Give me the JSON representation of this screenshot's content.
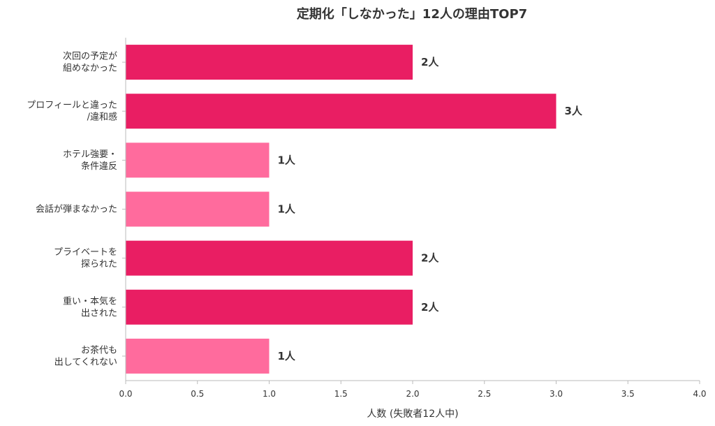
{
  "chart_data": {
    "type": "bar",
    "orientation": "horizontal",
    "title": "定期化「しなかった」12人の理由TOP7",
    "xlabel": "人数 (失敗者12人中)",
    "ylabel": "",
    "xlim": [
      0,
      4
    ],
    "xticks": [
      "0.0",
      "0.5",
      "1.0",
      "1.5",
      "2.0",
      "2.5",
      "3.0",
      "3.5",
      "4.0"
    ],
    "grid": false,
    "categories": [
      [
        "次回の予定が",
        "組めなかった"
      ],
      [
        "プロフィールと違った",
        "/違和感"
      ],
      [
        "ホテル強要・",
        "条件違反"
      ],
      [
        "会話が弾まなかった"
      ],
      [
        "プライベートを",
        "探られた"
      ],
      [
        "重い・本気を",
        "出された"
      ],
      [
        "お茶代も",
        "出してくれない"
      ]
    ],
    "values": [
      2,
      3,
      1,
      1,
      2,
      2,
      1
    ],
    "value_labels": [
      "2人",
      "3人",
      "1人",
      "1人",
      "2人",
      "2人",
      "1人"
    ],
    "colors": {
      "dark": "#E91E63",
      "light": "#FF6B9D",
      "axis": "#BBBBBB",
      "text": "#333333"
    }
  }
}
